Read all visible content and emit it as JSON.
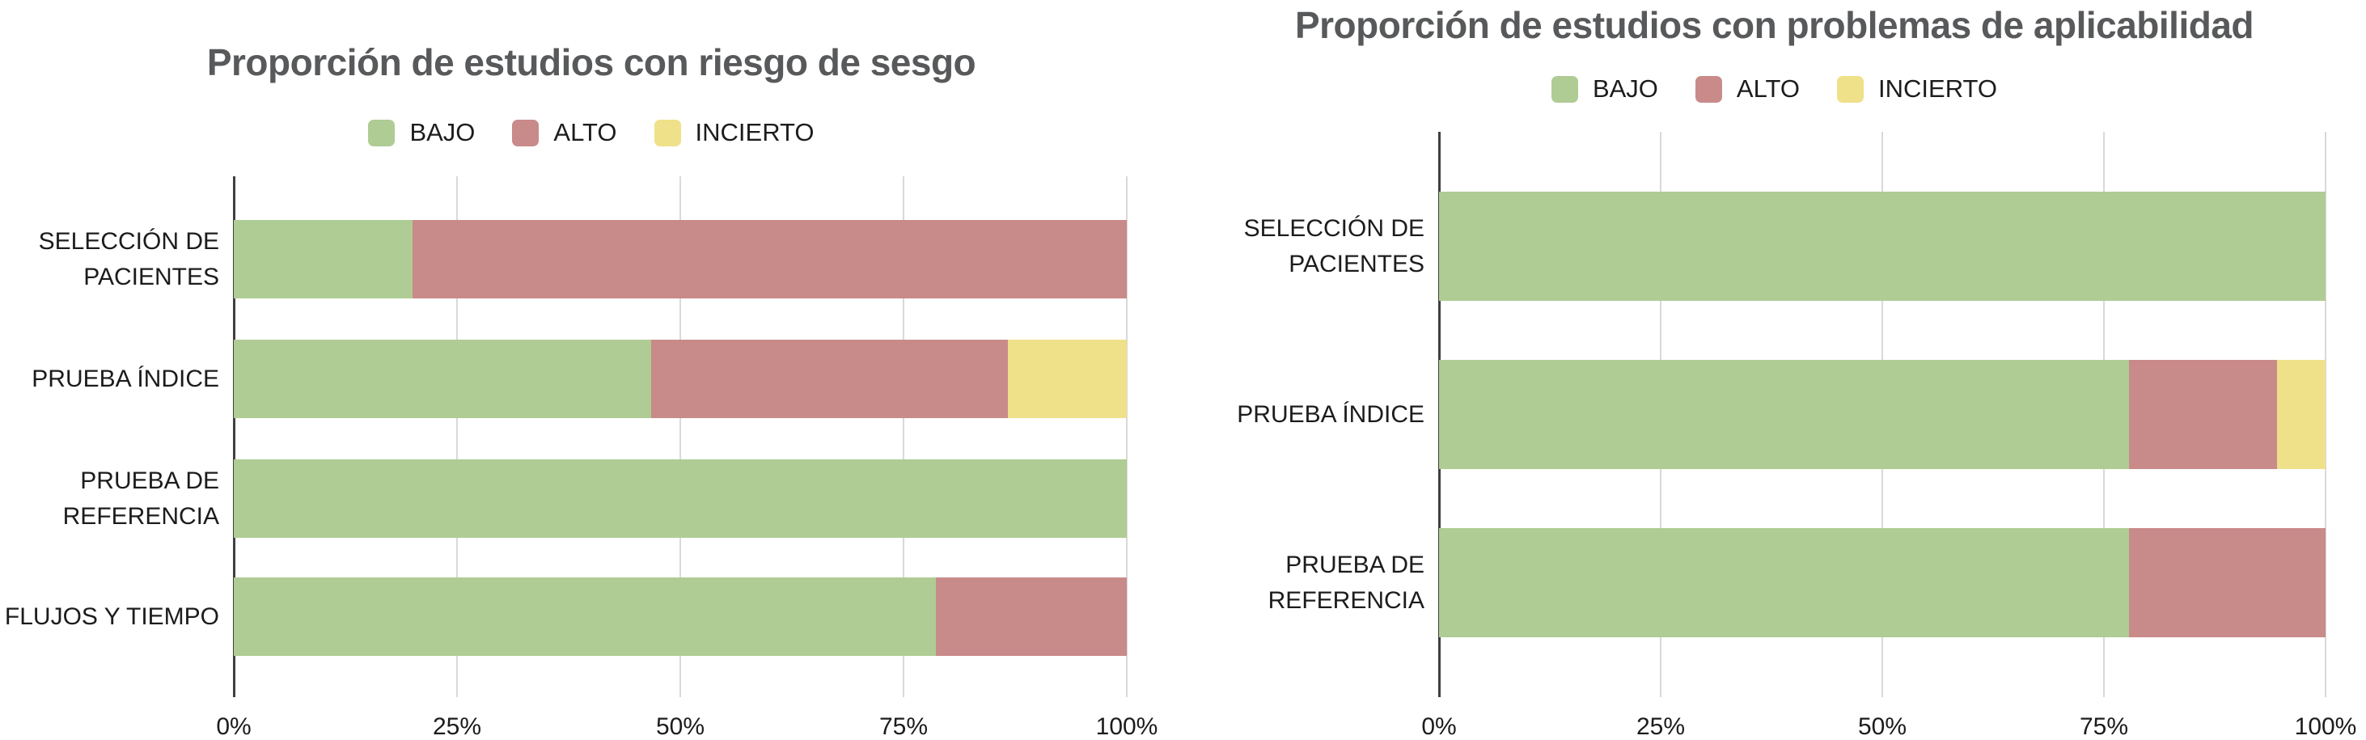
{
  "colors": {
    "bajo": "#afcc94",
    "alto": "#c98a8a",
    "incierto": "#efe08a",
    "title_text": "#58595b",
    "label_text": "#1c1c1c",
    "gridline": "#d9d9d9",
    "axis_line": "#3f3f3f",
    "background": "#ffffff"
  },
  "chart_data": [
    {
      "type": "bar",
      "orientation": "horizontal",
      "stacked": true,
      "units": "percent",
      "title": "Proporción de estudios con riesgo de sesgo",
      "legend_position": "top",
      "grid": true,
      "xlim": [
        0,
        100
      ],
      "x_tick_labels": [
        "0%",
        "25%",
        "50%",
        "75%",
        "100%"
      ],
      "x_tick_values": [
        0,
        25,
        50,
        75,
        100
      ],
      "categories": [
        "SELECCIÓN DE\nPACIENTES",
        "PRUEBA ÍNDICE",
        "PRUEBA DE\nREFERENCIA",
        "FLUJOS Y TIEMPO"
      ],
      "series": [
        {
          "name": "BAJO",
          "color": "#afcc94",
          "values": [
            20,
            46.7,
            100,
            78.6
          ]
        },
        {
          "name": "ALTO",
          "color": "#c98a8a",
          "values": [
            80,
            40,
            0,
            21.4
          ]
        },
        {
          "name": "INCIERTO",
          "color": "#efe08a",
          "values": [
            0,
            13.3,
            0,
            0
          ]
        }
      ]
    },
    {
      "type": "bar",
      "orientation": "horizontal",
      "stacked": true,
      "units": "percent",
      "title": "Proporción de estudios con problemas de aplicabilidad",
      "legend_position": "top",
      "grid": true,
      "xlim": [
        0,
        100
      ],
      "x_tick_labels": [
        "0%",
        "25%",
        "50%",
        "75%",
        "100%"
      ],
      "x_tick_values": [
        0,
        25,
        50,
        75,
        100
      ],
      "categories": [
        "SELECCIÓN DE\nPACIENTES",
        "PRUEBA ÍNDICE",
        "PRUEBA DE\nREFERENCIA"
      ],
      "series": [
        {
          "name": "BAJO",
          "color": "#afcc94",
          "values": [
            100,
            77.8,
            77.8
          ]
        },
        {
          "name": "ALTO",
          "color": "#c98a8a",
          "values": [
            0,
            16.7,
            22.2
          ]
        },
        {
          "name": "INCIERTO",
          "color": "#efe08a",
          "values": [
            0,
            5.6,
            0
          ]
        }
      ]
    }
  ]
}
